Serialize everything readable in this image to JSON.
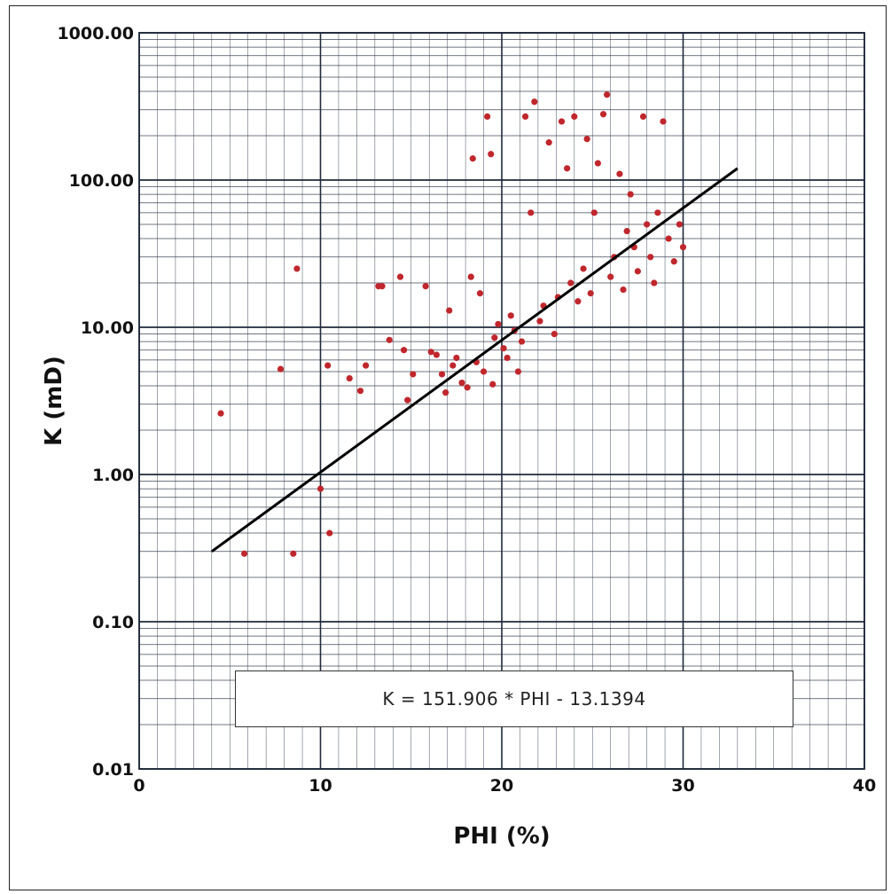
{
  "chart_data": {
    "type": "scatter",
    "title": "",
    "xlabel": "PHI (%)",
    "ylabel": "K (mD)",
    "xlim": [
      0,
      40
    ],
    "ylim": [
      0.01,
      1000
    ],
    "yscale": "log",
    "grid": true,
    "x_ticks": [
      "0",
      "10",
      "20",
      "30",
      "40"
    ],
    "y_ticks": [
      "0.01",
      "0.10",
      "1.00",
      "10.00",
      "100.00",
      "1000.00"
    ],
    "point_color": "#c0272d",
    "fit_line": {
      "color": "#000000",
      "x": [
        4,
        33
      ],
      "y": [
        0.3,
        120
      ]
    },
    "annotation": "K = 151.906 * PHI - 13.1394",
    "points": [
      [
        4.5,
        2.6
      ],
      [
        5.8,
        0.29
      ],
      [
        8.5,
        0.29
      ],
      [
        8.7,
        25
      ],
      [
        7.8,
        5.2
      ],
      [
        10.4,
        5.5
      ],
      [
        10.0,
        0.8
      ],
      [
        10.5,
        0.4
      ],
      [
        11.6,
        4.5
      ],
      [
        12.2,
        3.7
      ],
      [
        12.5,
        5.5
      ],
      [
        13.2,
        19
      ],
      [
        13.4,
        19
      ],
      [
        13.8,
        8.2
      ],
      [
        14.4,
        22
      ],
      [
        14.6,
        7
      ],
      [
        14.8,
        3.2
      ],
      [
        15.1,
        4.8
      ],
      [
        15.8,
        19
      ],
      [
        16.1,
        6.8
      ],
      [
        16.4,
        6.5
      ],
      [
        16.7,
        4.8
      ],
      [
        16.9,
        3.6
      ],
      [
        17.1,
        13
      ],
      [
        17.3,
        5.5
      ],
      [
        17.5,
        6.2
      ],
      [
        17.8,
        4.2
      ],
      [
        18.1,
        3.9
      ],
      [
        18.3,
        22
      ],
      [
        18.6,
        5.8
      ],
      [
        18.4,
        140
      ],
      [
        18.8,
        17
      ],
      [
        19.0,
        5.0
      ],
      [
        19.2,
        270
      ],
      [
        19.4,
        150
      ],
      [
        19.5,
        4.1
      ],
      [
        19.6,
        8.5
      ],
      [
        19.8,
        10.5
      ],
      [
        20.1,
        7.2
      ],
      [
        20.3,
        6.2
      ],
      [
        20.5,
        12
      ],
      [
        20.7,
        9.5
      ],
      [
        20.9,
        5.0
      ],
      [
        21.1,
        8.0
      ],
      [
        21.3,
        270
      ],
      [
        21.6,
        60
      ],
      [
        21.8,
        340
      ],
      [
        22.1,
        11
      ],
      [
        22.3,
        14
      ],
      [
        22.6,
        180
      ],
      [
        22.9,
        9.0
      ],
      [
        23.1,
        16
      ],
      [
        23.3,
        250
      ],
      [
        23.6,
        120
      ],
      [
        23.8,
        20
      ],
      [
        24.0,
        270
      ],
      [
        24.2,
        15
      ],
      [
        24.5,
        25
      ],
      [
        24.7,
        190
      ],
      [
        24.9,
        17
      ],
      [
        25.1,
        60
      ],
      [
        25.3,
        130
      ],
      [
        25.6,
        280
      ],
      [
        25.8,
        380
      ],
      [
        26.0,
        22
      ],
      [
        26.2,
        30
      ],
      [
        26.5,
        110
      ],
      [
        26.7,
        18
      ],
      [
        26.9,
        45
      ],
      [
        27.1,
        80
      ],
      [
        27.3,
        35
      ],
      [
        27.5,
        24
      ],
      [
        27.8,
        270
      ],
      [
        28.0,
        50
      ],
      [
        28.2,
        30
      ],
      [
        28.4,
        20
      ],
      [
        28.6,
        60
      ],
      [
        28.9,
        250
      ],
      [
        29.2,
        40
      ],
      [
        29.5,
        28
      ],
      [
        29.8,
        50
      ],
      [
        30.0,
        35
      ]
    ]
  },
  "colors": {
    "grid": "#1f2a3a",
    "frame": "#222222"
  }
}
